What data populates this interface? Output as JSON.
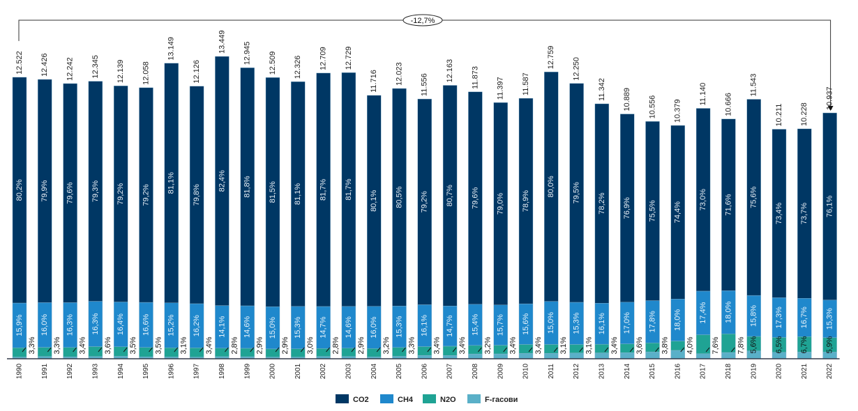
{
  "chart_data": {
    "type": "bar",
    "stacked": true,
    "title": "",
    "xlabel": "",
    "ylabel": "",
    "categories": [
      "1990",
      "1991",
      "1992",
      "1993",
      "1994",
      "1995",
      "1996",
      "1997",
      "1998",
      "1999",
      "2000",
      "2001",
      "2002",
      "2003",
      "2004",
      "2005",
      "2006",
      "2007",
      "2008",
      "2009",
      "2010",
      "2011",
      "2012",
      "2013",
      "2014",
      "2015",
      "2016",
      "2017",
      "2018",
      "2019",
      "2020",
      "2021",
      "2022"
    ],
    "totals": [
      12522,
      12426,
      12242,
      12345,
      12139,
      12058,
      13149,
      12126,
      13449,
      12945,
      12509,
      12326,
      12709,
      12729,
      11716,
      12023,
      11556,
      12163,
      11873,
      11397,
      11587,
      12759,
      12250,
      11342,
      10889,
      10556,
      10379,
      11140,
      10666,
      11543,
      10211,
      10228,
      10937
    ],
    "total_labels": [
      "12.522",
      "12.426",
      "12.242",
      "12.345",
      "12.139",
      "12.058",
      "13.149",
      "12.126",
      "13.449",
      "12.945",
      "12.509",
      "12.326",
      "12.709",
      "12.729",
      "11.716",
      "12.023",
      "11.556",
      "12.163",
      "11.873",
      "11.397",
      "11.587",
      "12.759",
      "12.250",
      "11.342",
      "10.889",
      "10.556",
      "10.379",
      "11.140",
      "10.666",
      "11.543",
      "10.211",
      "10.228",
      "10.937"
    ],
    "series": [
      {
        "name": "CO2",
        "color": "#003764",
        "values": [
          80.2,
          79.9,
          79.6,
          79.3,
          79.2,
          79.2,
          81.1,
          79.8,
          82.4,
          81.8,
          81.5,
          81.1,
          81.7,
          81.7,
          80.1,
          80.5,
          79.2,
          80.7,
          79.6,
          79.0,
          78.9,
          80.0,
          79.5,
          78.2,
          76.9,
          75.5,
          74.4,
          73.0,
          71.6,
          75.6,
          73.4,
          73.7,
          76.1
        ]
      },
      {
        "name": "CH4",
        "color": "#1f88cc",
        "values": [
          15.9,
          16.0,
          16.3,
          16.3,
          16.4,
          16.6,
          15.2,
          16.2,
          14.1,
          14.6,
          15.0,
          15.3,
          14.7,
          14.6,
          16.0,
          15.3,
          16.1,
          14.7,
          15.4,
          15.7,
          15.6,
          15.0,
          15.3,
          16.1,
          17.0,
          17.8,
          18.0,
          17.4,
          18.0,
          15.8,
          17.3,
          16.7,
          15.3
        ]
      },
      {
        "name": "N2O",
        "color": "#1fa394",
        "values": [
          3.3,
          3.3,
          3.4,
          3.6,
          3.5,
          3.5,
          3.1,
          3.4,
          2.8,
          2.9,
          2.9,
          3.0,
          2.8,
          2.9,
          3.2,
          3.3,
          3.4,
          3.4,
          3.2,
          3.4,
          3.4,
          3.1,
          3.1,
          3.4,
          3.6,
          3.8,
          4.0,
          7.6,
          7.8,
          5.6,
          6.5,
          6.7,
          5.9
        ]
      },
      {
        "name": "F-гасови",
        "color": "#5ab0c8",
        "values": [
          0.6,
          0.8,
          0.7,
          0.8,
          0.9,
          0.7,
          0.6,
          0.6,
          0.7,
          0.7,
          0.6,
          0.6,
          0.8,
          0.8,
          0.7,
          0.9,
          1.3,
          1.2,
          1.8,
          1.9,
          2.1,
          1.9,
          2.1,
          2.3,
          2.5,
          2.9,
          3.6,
          2.0,
          2.6,
          3.0,
          2.8,
          2.9,
          2.7
        ]
      }
    ],
    "co2_labels": [
      "80,2%",
      "79,9%",
      "79,6%",
      "79,3%",
      "79,2%",
      "79,2%",
      "81,1%",
      "79,8%",
      "82,4%",
      "81,8%",
      "81,5%",
      "81,1%",
      "81,7%",
      "81,7%",
      "80,1%",
      "80,5%",
      "79,2%",
      "80,7%",
      "79,6%",
      "79,0%",
      "78,9%",
      "80,0%",
      "79,5%",
      "78,2%",
      "76,9%",
      "75,5%",
      "74,4%",
      "73,0%",
      "71,6%",
      "75,6%",
      "73,4%",
      "73,7%",
      "76,1%"
    ],
    "ch4_labels": [
      "15,9%",
      "16,0%",
      "16,3%",
      "16,3%",
      "16,4%",
      "16,6%",
      "15,2%",
      "16,2%",
      "14,1%",
      "14,6%",
      "15,0%",
      "15,3%",
      "14,7%",
      "14,6%",
      "16,0%",
      "15,3%",
      "16,1%",
      "14,7%",
      "15,4%",
      "15,7%",
      "15,6%",
      "15,0%",
      "15,3%",
      "16,1%",
      "17,0%",
      "17,8%",
      "18,0%",
      "17,4%",
      "18,0%",
      "15,8%",
      "17,3%",
      "16,7%",
      "15,3%"
    ],
    "n2o_labels": [
      "3,3%",
      "3,3%",
      "3,4%",
      "3,6%",
      "3,5%",
      "3,5%",
      "3,1%",
      "3,4%",
      "2,8%",
      "2,9%",
      "2,9%",
      "3,0%",
      "2,8%",
      "2,9%",
      "3,2%",
      "3,3%",
      "3,4%",
      "3,4%",
      "3,2%",
      "3,4%",
      "3,4%",
      "3,1%",
      "3,1%",
      "3,4%",
      "3,6%",
      "3,8%",
      "4,0%",
      "7,6%",
      "7,8%",
      "5,6%",
      "6,5%",
      "6,7%",
      "5,9%"
    ],
    "annotation": {
      "label": "-12,7%",
      "from": "1990",
      "to": "2022"
    },
    "ylim": [
      0,
      13449
    ],
    "grid": false,
    "legend": {
      "position": "bottom",
      "entries": [
        "CO2",
        "CH4",
        "N2O",
        "F-гасови"
      ]
    }
  }
}
